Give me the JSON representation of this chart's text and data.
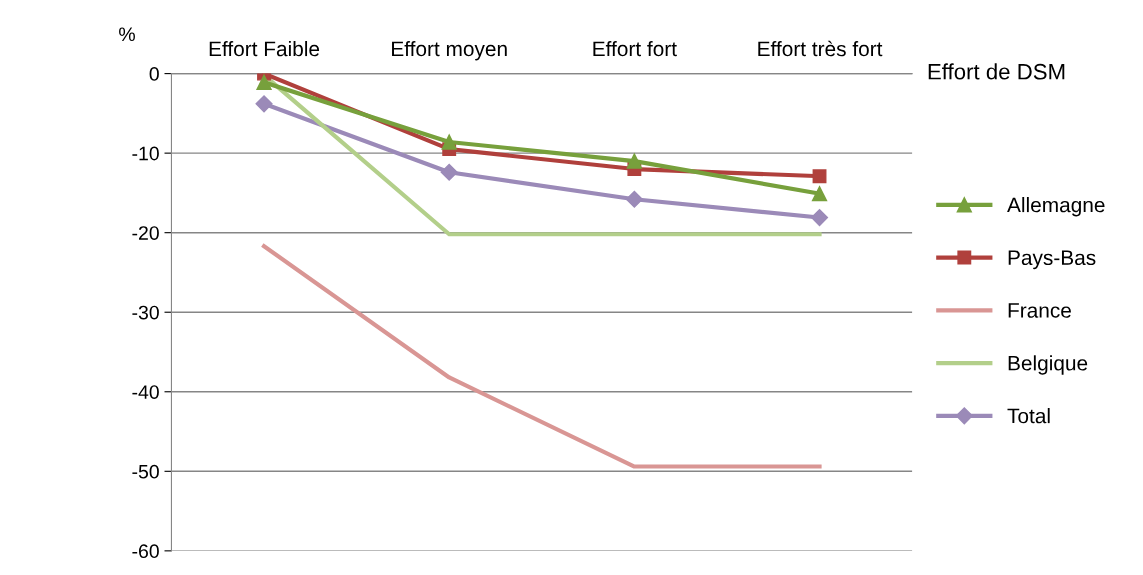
{
  "chart_data": {
    "type": "line",
    "xlabel": "Effort de DSM",
    "ylabel": "%",
    "categories": [
      "Effort Faible",
      "Effort moyen",
      "Effort fort",
      "Effort très fort"
    ],
    "ylim": [
      -60,
      0
    ],
    "yticks": [
      -60,
      -50,
      -40,
      -30,
      -20,
      -10,
      0
    ],
    "grid": "y",
    "legend": "right",
    "series": [
      {
        "name": "Allemagne",
        "color": "#77a03c",
        "marker": "triangle",
        "values": [
          -1.1,
          -8.6,
          -11.0,
          -15.1
        ]
      },
      {
        "name": "Pays-Bas",
        "color": "#b0403c",
        "marker": "square",
        "values": [
          0,
          -9.5,
          -12.0,
          -12.9
        ]
      },
      {
        "name": "France",
        "color": "#d99694",
        "marker": "none",
        "values": [
          -21.7,
          -38.2,
          -49.4,
          -49.4
        ]
      },
      {
        "name": "Belgique",
        "color": "#b3cf8a",
        "marker": "none",
        "values": [
          -0.2,
          -20.2,
          -20.2,
          -20.2
        ]
      },
      {
        "name": "Total",
        "color": "#9b8ab8",
        "marker": "diamond",
        "values": [
          -3.8,
          -12.4,
          -15.8,
          -18.1
        ]
      }
    ]
  }
}
